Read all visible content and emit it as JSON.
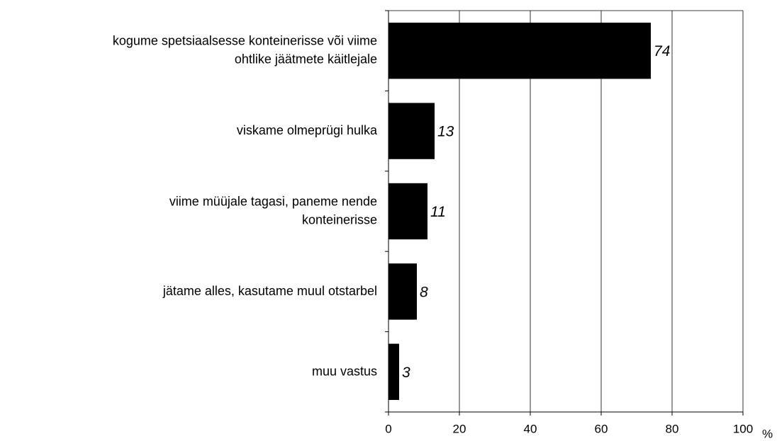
{
  "chart_data": {
    "type": "barh",
    "categories": [
      "kogume spetsiaalsesse konteinerisse või viime\nohtlike jäätmete käitlejale",
      "viskame olmeprügi hulka",
      "viime müüjale tagasi, paneme nende\nkonteinerisse",
      "jätame alles, kasutame muul otstarbel",
      "muu vastus"
    ],
    "values": [
      74,
      13,
      11,
      8,
      3
    ],
    "color": "#000000",
    "xlim": [
      0,
      100
    ],
    "xticks": [
      0,
      20,
      40,
      60,
      80,
      100
    ],
    "xlabel": "%",
    "grid": true
  }
}
